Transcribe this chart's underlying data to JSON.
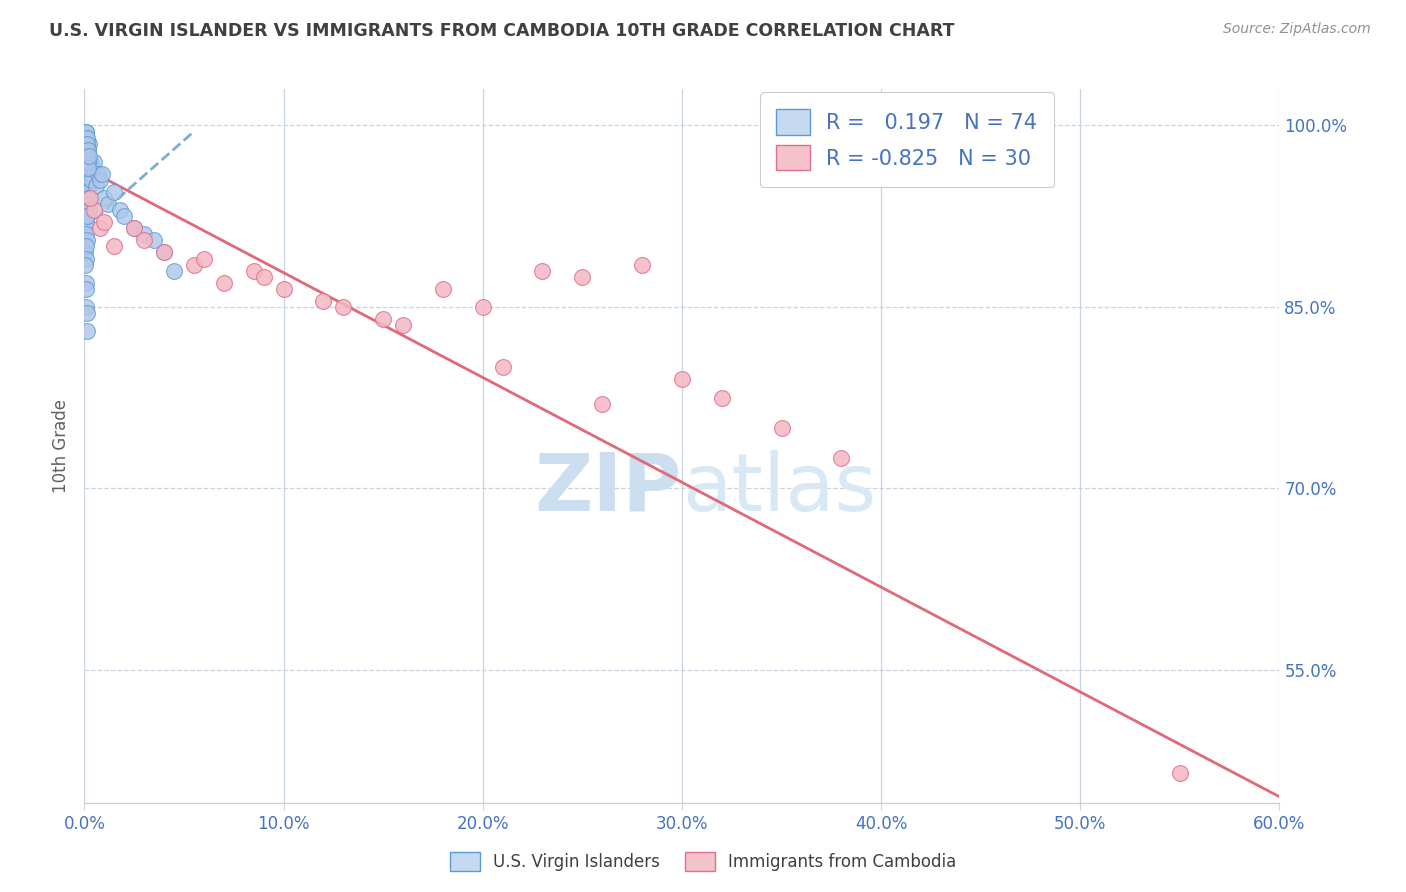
{
  "title": "U.S. VIRGIN ISLANDER VS IMMIGRANTS FROM CAMBODIA 10TH GRADE CORRELATION CHART",
  "source": "Source: ZipAtlas.com",
  "ylabel": "10th Grade",
  "xlim": [
    0.0,
    60.0
  ],
  "ylim": [
    44.0,
    103.0
  ],
  "yticks": [
    55.0,
    70.0,
    85.0,
    100.0
  ],
  "ytick_labels": [
    "55.0%",
    "70.0%",
    "85.0%",
    "100.0%"
  ],
  "xticks": [
    0.0,
    10.0,
    20.0,
    30.0,
    40.0,
    50.0,
    60.0
  ],
  "r_blue": 0.197,
  "n_blue": 74,
  "r_pink": -0.825,
  "n_pink": 30,
  "blue_color": "#aec6e8",
  "blue_edge": "#5b9bd5",
  "pink_color": "#f4b8c4",
  "pink_edge": "#e07090",
  "blue_line_color": "#7bafd4",
  "pink_line_color": "#e06878",
  "legend_box_blue": "#c5d9f1",
  "legend_box_pink": "#f4c2cb",
  "watermark_zip_color": "#ccdff0",
  "watermark_atlas_color": "#d8e8f4",
  "background_color": "#ffffff",
  "grid_color": "#c8d4e0",
  "title_color": "#404040",
  "axis_label_color": "#4472c4",
  "blue_scatter_x": [
    0.05,
    0.08,
    0.1,
    0.12,
    0.15,
    0.18,
    0.2,
    0.22,
    0.25,
    0.28,
    0.3,
    0.05,
    0.08,
    0.1,
    0.12,
    0.15,
    0.18,
    0.2,
    0.22,
    0.25,
    0.05,
    0.07,
    0.09,
    0.11,
    0.14,
    0.17,
    0.19,
    0.21,
    0.05,
    0.07,
    0.09,
    0.11,
    0.13,
    0.05,
    0.07,
    0.09,
    0.3,
    0.35,
    0.4,
    0.5,
    0.6,
    0.7,
    0.8,
    0.9,
    1.0,
    1.2,
    1.5,
    1.8,
    2.0,
    2.5,
    0.05,
    0.06,
    0.08,
    0.1,
    0.12,
    0.15,
    3.0,
    3.5,
    4.0,
    4.5,
    0.05,
    0.06,
    0.07,
    0.08,
    0.09,
    0.1,
    0.11,
    0.12,
    0.13,
    0.14,
    0.16,
    0.18,
    0.2,
    0.22
  ],
  "blue_scatter_y": [
    97.5,
    98.0,
    97.0,
    98.5,
    96.5,
    97.5,
    98.0,
    97.0,
    98.5,
    97.0,
    96.5,
    95.5,
    96.0,
    95.0,
    96.5,
    94.5,
    95.5,
    96.0,
    95.0,
    96.5,
    93.5,
    94.0,
    93.0,
    94.5,
    92.5,
    93.5,
    94.0,
    93.0,
    91.5,
    92.0,
    91.0,
    92.5,
    90.5,
    89.5,
    90.0,
    89.0,
    96.0,
    95.5,
    96.5,
    97.0,
    95.0,
    96.0,
    95.5,
    96.0,
    94.0,
    93.5,
    94.5,
    93.0,
    92.5,
    91.5,
    88.5,
    87.0,
    86.5,
    85.0,
    84.5,
    83.0,
    91.0,
    90.5,
    89.5,
    88.0,
    99.0,
    99.5,
    98.5,
    99.0,
    98.0,
    99.5,
    98.0,
    97.5,
    99.0,
    98.5,
    97.0,
    96.5,
    98.0,
    97.5
  ],
  "pink_scatter_x": [
    0.5,
    0.8,
    1.5,
    2.5,
    4.0,
    5.5,
    7.0,
    8.5,
    10.0,
    12.0,
    15.0,
    18.0,
    20.0,
    23.0,
    25.0,
    28.0,
    30.0,
    32.0,
    35.0,
    38.0,
    1.0,
    3.0,
    6.0,
    9.0,
    13.0,
    16.0,
    21.0,
    26.0,
    55.0,
    0.3
  ],
  "pink_scatter_y": [
    93.0,
    91.5,
    90.0,
    91.5,
    89.5,
    88.5,
    87.0,
    88.0,
    86.5,
    85.5,
    84.0,
    86.5,
    85.0,
    88.0,
    87.5,
    88.5,
    79.0,
    77.5,
    75.0,
    72.5,
    92.0,
    90.5,
    89.0,
    87.5,
    85.0,
    83.5,
    80.0,
    77.0,
    46.5,
    94.0
  ],
  "blue_trend_x": [
    0.0,
    5.5
  ],
  "blue_trend_y": [
    91.5,
    99.5
  ],
  "pink_trend_x": [
    0.0,
    60.0
  ],
  "pink_trend_y": [
    96.5,
    44.5
  ]
}
